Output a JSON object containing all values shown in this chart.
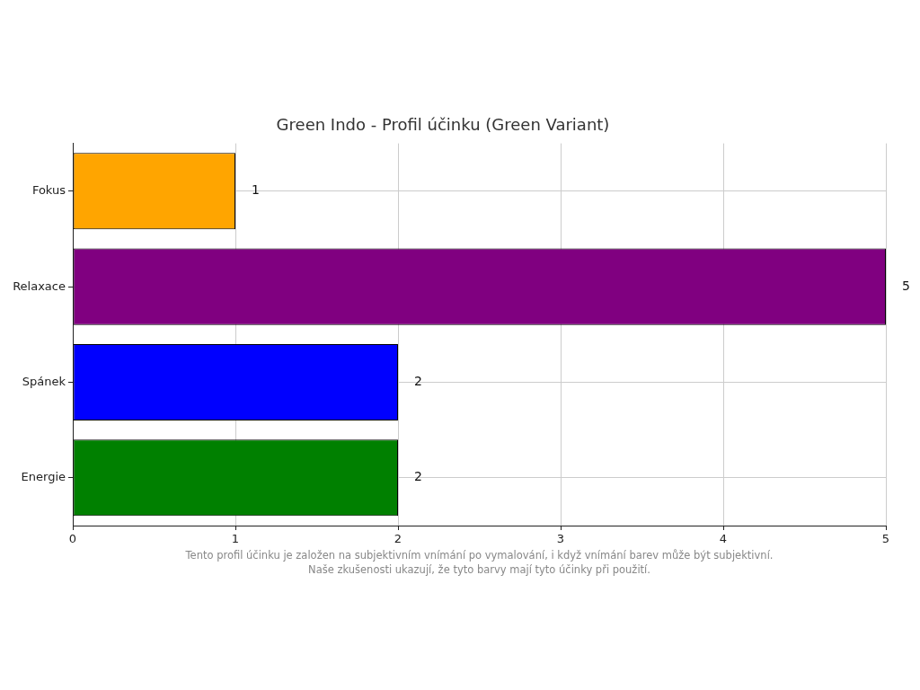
{
  "chart_data": {
    "type": "bar",
    "orientation": "horizontal",
    "title": "Green Indo - Profil účinku (Green Variant)",
    "categories": [
      "Fokus",
      "Relaxace",
      "Spánek",
      "Energie"
    ],
    "values": [
      1,
      5,
      2,
      2
    ],
    "colors": [
      "#ffa500",
      "#800080",
      "#0000ff",
      "#008000"
    ],
    "xlim": [
      0,
      5
    ],
    "xticks": [
      0,
      1,
      2,
      3,
      4,
      5
    ],
    "grid": true,
    "data_labels": true,
    "legend": false,
    "annotations": [
      "Tento profil účinku je založen na subjektivním vnímání po vymalování, i když vnímání barev může být subjektivní.",
      "Naše zkušenosti ukazují, že tyto barvy mají tyto účinky při použití."
    ]
  }
}
